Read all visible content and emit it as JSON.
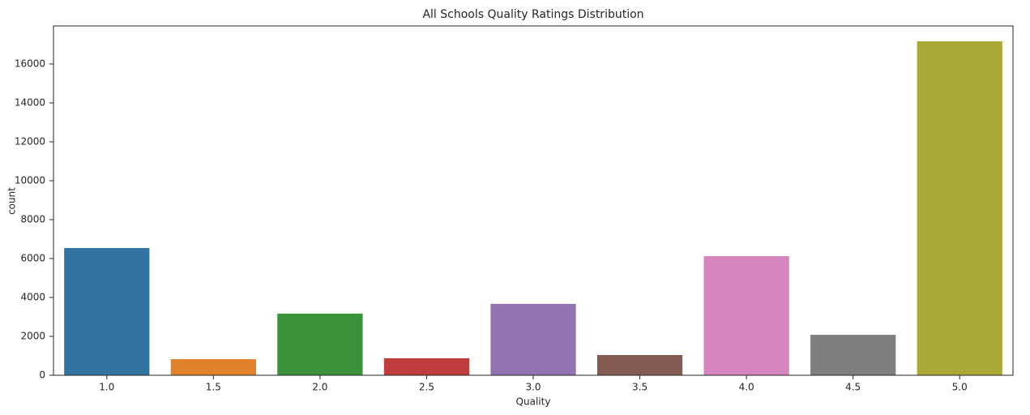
{
  "chart_data": {
    "type": "bar",
    "title": "All Schools Quality Ratings Distribution",
    "x_label": "Quality",
    "y_label": "count",
    "categories": [
      "1.0",
      "1.5",
      "2.0",
      "2.5",
      "3.0",
      "3.5",
      "4.0",
      "4.5",
      "5.0"
    ],
    "values": [
      6540,
      830,
      3170,
      875,
      3670,
      1040,
      6125,
      2080,
      17165
    ],
    "colors": [
      "#3274a1",
      "#e1812c",
      "#3a923a",
      "#c03d3e",
      "#9372b2",
      "#845b53",
      "#d684bd",
      "#7f7f7f",
      "#a9aa35"
    ],
    "ylim": [
      0,
      17955
    ],
    "yticks": [
      0,
      2000,
      4000,
      6000,
      8000,
      10000,
      12000,
      14000,
      16000
    ],
    "grid": false
  }
}
